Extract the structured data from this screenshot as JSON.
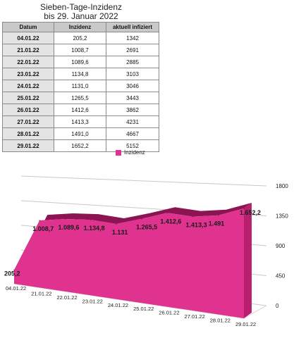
{
  "title_line1": "Sieben-Tage-Inzidenz",
  "title_line2": "bis 29. Januar 2022",
  "table": {
    "headers": [
      "Datum",
      "Inzidenz",
      "aktuell infiziert"
    ],
    "rows": [
      {
        "date": "04.01.22",
        "inzidenz": "205,2",
        "infiziert": "1342"
      },
      {
        "date": "21.01.22",
        "inzidenz": "1008,7",
        "infiziert": "2691"
      },
      {
        "date": "22.01.22",
        "inzidenz": "1089,6",
        "infiziert": "2885"
      },
      {
        "date": "23.01.22",
        "inzidenz": "1134,8",
        "infiziert": "3103"
      },
      {
        "date": "24.01.22",
        "inzidenz": "1131,0",
        "infiziert": "3046"
      },
      {
        "date": "25.01.22",
        "inzidenz": "1265,5",
        "infiziert": "3443"
      },
      {
        "date": "26.01.22",
        "inzidenz": "1412,6",
        "infiziert": "3862"
      },
      {
        "date": "27.01.22",
        "inzidenz": "1413,3",
        "infiziert": "4231"
      },
      {
        "date": "28.01.22",
        "inzidenz": "1491,0",
        "infiziert": "4667"
      },
      {
        "date": "29.01.22",
        "inzidenz": "1652,2",
        "infiziert": "5152"
      }
    ]
  },
  "colors": {
    "area": "#e0338f",
    "area_top": "#8c1452",
    "grid": "#c8c8c8"
  },
  "chart_data": {
    "type": "area",
    "categories": [
      "04.01.22",
      "21.01.22",
      "22.01.22",
      "23.01.22",
      "24.01.22",
      "25.01.22",
      "26.01.22",
      "27.01.22",
      "28.01.22",
      "29.01.22"
    ],
    "series": [
      {
        "name": "Inzidenz",
        "values": [
          205.2,
          1008.7,
          1089.6,
          1134.8,
          1131.0,
          1265.5,
          1412.6,
          1413.3,
          1491.0,
          1652.2
        ]
      }
    ],
    "data_labels": [
      "205,2",
      "1.008,7",
      "1.089,6",
      "1.134,8",
      "1.131",
      "1.265,5",
      "1.412,6",
      "1.413,3",
      "1.491",
      "1.652,2"
    ],
    "ylim": [
      0,
      1800
    ],
    "yticks": [
      "0",
      "450",
      "900",
      "1350",
      "1800"
    ],
    "ytick_values": [
      0,
      450,
      900,
      1350,
      1800
    ],
    "legend_position": "top",
    "grid": true
  }
}
